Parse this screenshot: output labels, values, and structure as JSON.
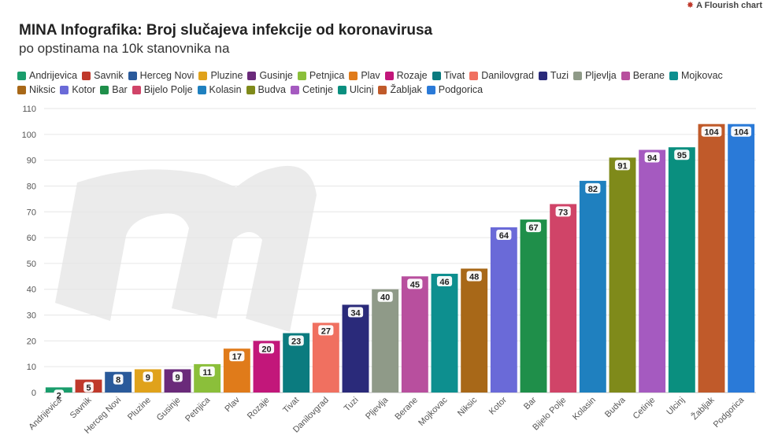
{
  "credit": "A Flourish chart",
  "chart_data": {
    "type": "bar",
    "title": "MINA Infografika: Broj slučajeva infekcije od koronavirusa",
    "subtitle": "po opstinama na 10k stanovnika na",
    "categories": [
      "Andrijevica",
      "Savnik",
      "Herceg Novi",
      "Pluzine",
      "Gusinje",
      "Petnjica",
      "Plav",
      "Rozaje",
      "Tivat",
      "Danilovgrad",
      "Tuzi",
      "Pljevlja",
      "Berane",
      "Mojkovac",
      "Niksic",
      "Kotor",
      "Bar",
      "Bijelo Polje",
      "Kolasin",
      "Budva",
      "Cetinje",
      "Ulcinj",
      "Žabljak",
      "Podgorica"
    ],
    "values": [
      2,
      5,
      8,
      9,
      9,
      11,
      17,
      20,
      23,
      27,
      34,
      40,
      45,
      46,
      48,
      64,
      67,
      73,
      82,
      91,
      94,
      95,
      104,
      104
    ],
    "colors": [
      "#1a9d6c",
      "#c0392b",
      "#2a5a9b",
      "#e0a21b",
      "#6a2a7a",
      "#8bbf3a",
      "#e07b1a",
      "#c2177a",
      "#0b7b7f",
      "#f07060",
      "#2a2a7a",
      "#8f9a88",
      "#b84f9e",
      "#0d8f8f",
      "#a86818",
      "#6a6ad8",
      "#1f8f4a",
      "#d04468",
      "#1f80bf",
      "#7f8a1a",
      "#a55ac0",
      "#0a8f7f",
      "#c05a2a",
      "#2a7ad8"
    ],
    "legend": [
      {
        "label": "Andrijevica",
        "color": "#1a9d6c"
      },
      {
        "label": "Savnik",
        "color": "#c0392b"
      },
      {
        "label": "Herceg Novi",
        "color": "#2a5a9b"
      },
      {
        "label": "Pluzine",
        "color": "#e0a21b"
      },
      {
        "label": "Gusinje",
        "color": "#6a2a7a"
      },
      {
        "label": "Petnjica",
        "color": "#8bbf3a"
      },
      {
        "label": "Plav",
        "color": "#e07b1a"
      },
      {
        "label": "Rozaje",
        "color": "#c2177a"
      },
      {
        "label": "Tivat",
        "color": "#0b7b7f"
      },
      {
        "label": "Danilovgrad",
        "color": "#f07060"
      },
      {
        "label": "Tuzi",
        "color": "#2a2a7a"
      },
      {
        "label": "Pljevlja",
        "color": "#8f9a88"
      },
      {
        "label": "Berane",
        "color": "#b84f9e"
      },
      {
        "label": "Mojkovac",
        "color": "#0d8f8f"
      },
      {
        "label": "Niksic",
        "color": "#a86818"
      },
      {
        "label": "Kotor",
        "color": "#6a6ad8"
      },
      {
        "label": "Bar",
        "color": "#1f8f4a"
      },
      {
        "label": "Bijelo Polje",
        "color": "#d04468"
      },
      {
        "label": "Kolasin",
        "color": "#1f80bf"
      },
      {
        "label": "Budva",
        "color": "#7f8a1a"
      },
      {
        "label": "Cetinje",
        "color": "#a55ac0"
      },
      {
        "label": "Ulcinj",
        "color": "#0a8f7f"
      },
      {
        "label": "Žabljak",
        "color": "#c05a2a"
      },
      {
        "label": "Podgorica",
        "color": "#2a7ad8"
      }
    ],
    "ylim": [
      0,
      110
    ],
    "yticks": [
      0,
      10,
      20,
      30,
      40,
      50,
      60,
      70,
      80,
      90,
      100,
      110
    ],
    "grid": true,
    "xlabel": "",
    "ylabel": ""
  }
}
